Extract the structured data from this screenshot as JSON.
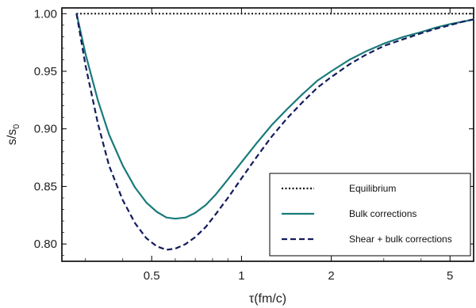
{
  "chart_data": {
    "type": "line",
    "xlabel": "τ(fm/c)",
    "ylabel": "s/s0",
    "xscale": "log",
    "xlim": [
      0.25,
      6.0
    ],
    "ylim": [
      0.785,
      1.005
    ],
    "xticks": [
      {
        "value": 0.5,
        "label": "0.5"
      },
      {
        "value": 1,
        "label": "1"
      },
      {
        "value": 2,
        "label": "2"
      },
      {
        "value": 5,
        "label": "5"
      }
    ],
    "yticks": [
      {
        "value": 0.8,
        "label": "0.80"
      },
      {
        "value": 0.85,
        "label": "0.85"
      },
      {
        "value": 0.9,
        "label": "0.90"
      },
      {
        "value": 0.95,
        "label": "0.95"
      },
      {
        "value": 1.0,
        "label": "1.00"
      }
    ],
    "legend_position": "bottom-right",
    "series": [
      {
        "name": "Equilibrium",
        "style": "dotted",
        "color": "#111111",
        "x": [
          0.28,
          6.0
        ],
        "y": [
          1.0,
          1.0
        ]
      },
      {
        "name": "Bulk corrections",
        "style": "solid",
        "color": "#1a7a7a",
        "x": [
          0.28,
          0.3,
          0.33,
          0.36,
          0.4,
          0.44,
          0.48,
          0.52,
          0.56,
          0.6,
          0.65,
          0.7,
          0.76,
          0.82,
          0.9,
          1.0,
          1.12,
          1.26,
          1.42,
          1.6,
          1.8,
          2.0,
          2.3,
          2.6,
          3.0,
          3.5,
          4.0,
          4.5,
          5.0,
          5.5,
          6.0
        ],
        "y": [
          1.0,
          0.965,
          0.925,
          0.895,
          0.868,
          0.849,
          0.836,
          0.828,
          0.823,
          0.822,
          0.823,
          0.827,
          0.834,
          0.843,
          0.856,
          0.871,
          0.887,
          0.903,
          0.917,
          0.93,
          0.942,
          0.95,
          0.96,
          0.967,
          0.974,
          0.98,
          0.984,
          0.988,
          0.991,
          0.993,
          0.995
        ]
      },
      {
        "name": "Shear + bulk corrections",
        "style": "dashed",
        "color": "#141b5c",
        "x": [
          0.28,
          0.3,
          0.33,
          0.36,
          0.4,
          0.44,
          0.48,
          0.52,
          0.56,
          0.6,
          0.65,
          0.7,
          0.76,
          0.82,
          0.9,
          1.0,
          1.12,
          1.26,
          1.42,
          1.6,
          1.8,
          2.0,
          2.3,
          2.6,
          3.0,
          3.5,
          4.0,
          4.5,
          5.0,
          5.5,
          6.0
        ],
        "y": [
          1.0,
          0.955,
          0.905,
          0.868,
          0.838,
          0.818,
          0.805,
          0.798,
          0.795,
          0.796,
          0.8,
          0.806,
          0.815,
          0.826,
          0.84,
          0.857,
          0.875,
          0.893,
          0.909,
          0.923,
          0.936,
          0.945,
          0.956,
          0.964,
          0.972,
          0.978,
          0.983,
          0.987,
          0.99,
          0.993,
          0.995
        ]
      }
    ]
  }
}
